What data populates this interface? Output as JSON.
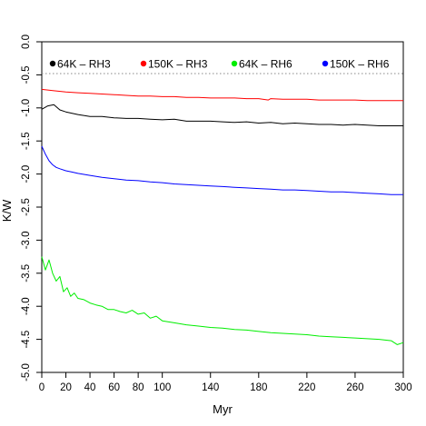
{
  "chart_data": {
    "type": "line",
    "xlabel": "Myr",
    "ylabel": "K/W",
    "xlim": [
      0,
      300
    ],
    "ylim": [
      -5.0,
      0.0
    ],
    "x_ticks": [
      0,
      20,
      40,
      60,
      80,
      100,
      140,
      180,
      220,
      260,
      300
    ],
    "y_ticks": [
      0.0,
      -0.5,
      -1.0,
      -1.5,
      -2.0,
      -2.5,
      -3.0,
      -3.5,
      -4.0,
      -4.5,
      -5.0
    ],
    "y_tick_labels": [
      "0.0",
      "-0.5",
      "-1.0",
      "-1.5",
      "-2.0",
      "-2.5",
      "-3.0",
      "-3.5",
      "-4.0",
      "-4.5",
      "-5.0"
    ],
    "grid": false,
    "legend_position": "top",
    "reference_line": {
      "y": -0.48,
      "style": "dotted",
      "color": "#888888"
    },
    "series": [
      {
        "name": "64K – RH3",
        "color": "#000000",
        "x": [
          0,
          5,
          10,
          15,
          20,
          30,
          40,
          50,
          60,
          70,
          80,
          90,
          100,
          110,
          120,
          130,
          140,
          150,
          160,
          170,
          180,
          190,
          200,
          210,
          220,
          230,
          240,
          250,
          260,
          270,
          280,
          290,
          300
        ],
        "y": [
          -1.02,
          -0.97,
          -0.95,
          -1.03,
          -1.06,
          -1.1,
          -1.13,
          -1.13,
          -1.15,
          -1.16,
          -1.16,
          -1.17,
          -1.18,
          -1.17,
          -1.2,
          -1.2,
          -1.2,
          -1.21,
          -1.22,
          -1.21,
          -1.23,
          -1.22,
          -1.24,
          -1.23,
          -1.24,
          -1.25,
          -1.25,
          -1.26,
          -1.25,
          -1.26,
          -1.27,
          -1.27,
          -1.27
        ]
      },
      {
        "name": "150K – RH3",
        "color": "#ff0000",
        "x": [
          0,
          10,
          20,
          30,
          40,
          50,
          60,
          70,
          80,
          90,
          100,
          110,
          120,
          130,
          140,
          150,
          160,
          170,
          180,
          188,
          190,
          200,
          210,
          220,
          230,
          240,
          250,
          260,
          270,
          280,
          290,
          300
        ],
        "y": [
          -0.72,
          -0.74,
          -0.76,
          -0.77,
          -0.78,
          -0.79,
          -0.8,
          -0.81,
          -0.82,
          -0.82,
          -0.83,
          -0.83,
          -0.84,
          -0.84,
          -0.85,
          -0.85,
          -0.85,
          -0.86,
          -0.86,
          -0.88,
          -0.86,
          -0.87,
          -0.87,
          -0.87,
          -0.88,
          -0.88,
          -0.88,
          -0.88,
          -0.89,
          -0.89,
          -0.89,
          -0.89
        ]
      },
      {
        "name": "64K – RH6",
        "color": "#00ee00",
        "x": [
          0,
          3,
          6,
          9,
          12,
          15,
          18,
          21,
          24,
          27,
          30,
          35,
          40,
          45,
          50,
          55,
          60,
          65,
          70,
          75,
          80,
          85,
          90,
          95,
          100,
          110,
          120,
          130,
          140,
          150,
          160,
          170,
          180,
          190,
          200,
          210,
          220,
          230,
          240,
          250,
          260,
          270,
          280,
          290,
          295,
          300
        ],
        "y": [
          -3.25,
          -3.45,
          -3.3,
          -3.5,
          -3.62,
          -3.55,
          -3.78,
          -3.72,
          -3.85,
          -3.8,
          -3.88,
          -3.9,
          -3.95,
          -3.98,
          -4.0,
          -4.05,
          -4.05,
          -4.08,
          -4.1,
          -4.06,
          -4.12,
          -4.1,
          -4.18,
          -4.15,
          -4.22,
          -4.25,
          -4.28,
          -4.3,
          -4.32,
          -4.33,
          -4.35,
          -4.36,
          -4.38,
          -4.4,
          -4.41,
          -4.42,
          -4.43,
          -4.45,
          -4.46,
          -4.47,
          -4.48,
          -4.49,
          -4.5,
          -4.52,
          -4.58,
          -4.55
        ]
      },
      {
        "name": "150K – RH6",
        "color": "#0000ff",
        "x": [
          0,
          3,
          6,
          9,
          12,
          15,
          20,
          25,
          30,
          40,
          50,
          60,
          70,
          80,
          90,
          100,
          110,
          120,
          130,
          140,
          150,
          160,
          170,
          180,
          190,
          200,
          210,
          220,
          230,
          240,
          250,
          260,
          270,
          280,
          290,
          300
        ],
        "y": [
          -1.58,
          -1.7,
          -1.8,
          -1.86,
          -1.9,
          -1.92,
          -1.95,
          -1.97,
          -1.99,
          -2.02,
          -2.05,
          -2.07,
          -2.09,
          -2.1,
          -2.12,
          -2.13,
          -2.15,
          -2.16,
          -2.17,
          -2.18,
          -2.19,
          -2.2,
          -2.21,
          -2.22,
          -2.23,
          -2.24,
          -2.24,
          -2.25,
          -2.26,
          -2.27,
          -2.27,
          -2.28,
          -2.29,
          -2.3,
          -2.31,
          -2.31
        ]
      }
    ]
  }
}
